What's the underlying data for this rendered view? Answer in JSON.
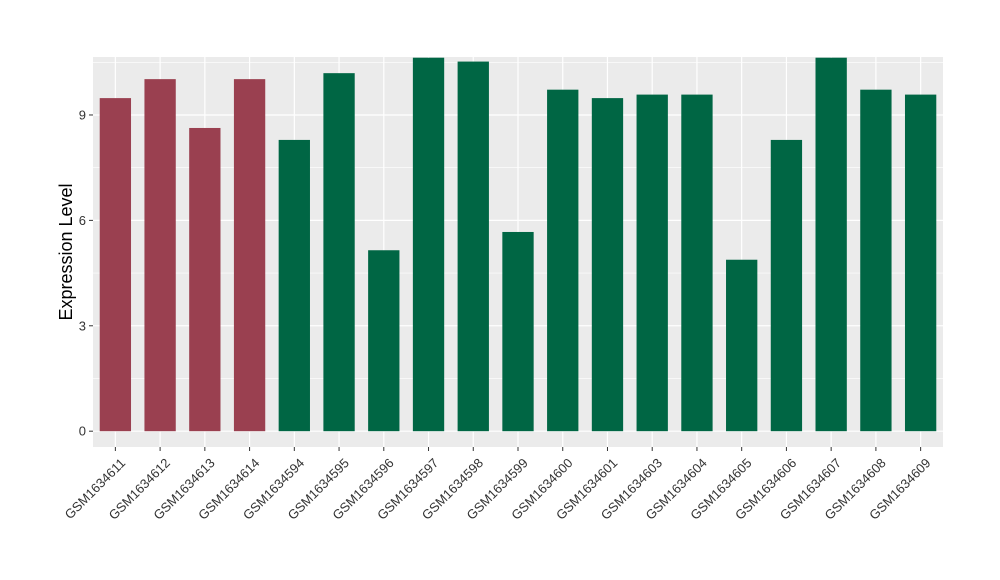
{
  "chart_data": {
    "type": "bar",
    "title": "",
    "xlabel": "",
    "ylabel": "Expression Level",
    "ylim": [
      -0.45,
      10.65
    ],
    "yticks": [
      0,
      3,
      6,
      9
    ],
    "grid": true,
    "categories": [
      "GSM1634611",
      "GSM1634612",
      "GSM1634613",
      "GSM1634614",
      "GSM1634594",
      "GSM1634595",
      "GSM1634596",
      "GSM1634597",
      "GSM1634598",
      "GSM1634599",
      "GSM1634600",
      "GSM1634601",
      "GSM1634603",
      "GSM1634604",
      "GSM1634605",
      "GSM1634606",
      "GSM1634607",
      "GSM1634608",
      "GSM1634609"
    ],
    "values": [
      9.48,
      10.02,
      8.63,
      10.02,
      8.29,
      10.19,
      5.15,
      10.63,
      10.52,
      5.67,
      9.72,
      9.48,
      9.58,
      9.58,
      4.88,
      8.29,
      10.63,
      9.72,
      9.58
    ],
    "groups": [
      0,
      0,
      0,
      0,
      1,
      1,
      1,
      1,
      1,
      1,
      1,
      1,
      1,
      1,
      1,
      1,
      1,
      1,
      1
    ],
    "group_colors": [
      "#9A4050",
      "#006644"
    ],
    "panel_background": "#EBEBEB",
    "grid_color": "#FFFFFF"
  }
}
